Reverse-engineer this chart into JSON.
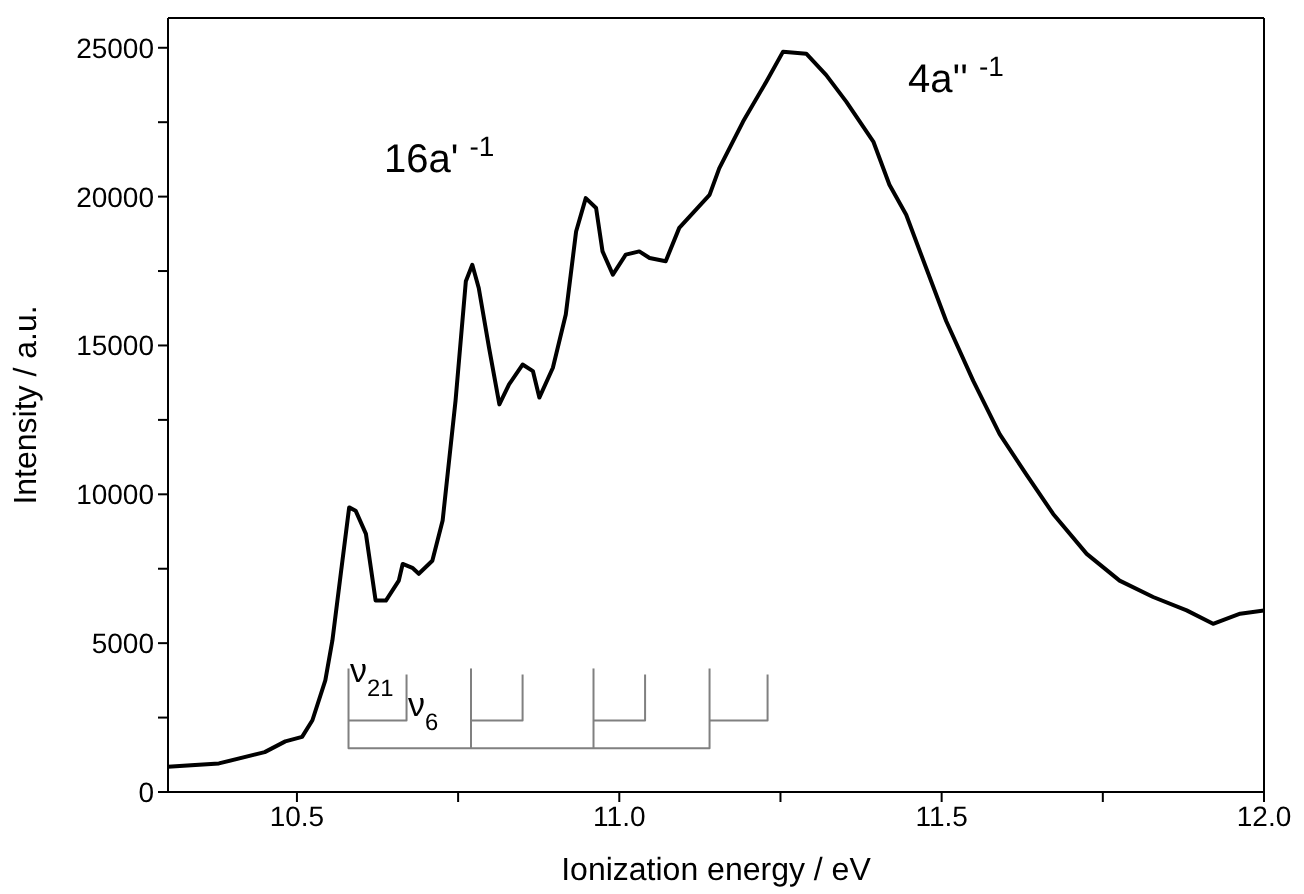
{
  "chart_data": {
    "type": "line",
    "xlabel": "Ionization energy / eV",
    "ylabel": "Intensity / a.u.",
    "xlim": [
      10.3,
      12.0
    ],
    "ylim": [
      0,
      26000
    ],
    "xticks": [
      10.5,
      {
        "value": 10.75,
        "label": null
      },
      {
        "value": 11,
        "label": "11.0"
      },
      {
        "value": 11.25,
        "label": null
      },
      11.5,
      {
        "value": 11.75,
        "label": null
      },
      {
        "value": 12,
        "label": "12.0"
      }
    ],
    "yticks": [
      0,
      {
        "value": 2500,
        "label": null
      },
      5000,
      {
        "value": 7500,
        "label": null
      },
      10000,
      {
        "value": 12500,
        "label": null
      },
      15000,
      {
        "value": 17500,
        "label": null
      },
      20000,
      {
        "value": 22500,
        "label": null
      },
      25000
    ],
    "marker": "none",
    "line_style": "solid",
    "series": [
      {
        "color": "#000000",
        "x": [
          10.3,
          10.379,
          10.45,
          10.482,
          10.508,
          10.524,
          10.544,
          10.555,
          10.568,
          10.581,
          10.591,
          10.607,
          10.622,
          10.638,
          10.658,
          10.664,
          10.679,
          10.689,
          10.71,
          10.726,
          10.746,
          10.762,
          10.772,
          10.782,
          10.798,
          10.814,
          10.829,
          10.85,
          10.866,
          10.876,
          10.897,
          10.917,
          10.933,
          10.948,
          10.964,
          10.974,
          10.99,
          11.01,
          11.031,
          11.047,
          11.072,
          11.093,
          11.14,
          11.155,
          11.192,
          11.228,
          11.254,
          11.29,
          11.321,
          11.352,
          11.394,
          11.419,
          11.445,
          11.476,
          11.507,
          11.549,
          11.59,
          11.631,
          11.673,
          11.725,
          11.776,
          11.828,
          11.88,
          11.921,
          11.963,
          12.0
        ],
        "values": [
          850,
          960,
          1340,
          1700,
          1850,
          2410,
          3750,
          5090,
          7330,
          9560,
          9450,
          8670,
          6430,
          6430,
          7100,
          7660,
          7530,
          7330,
          7770,
          9120,
          13140,
          17160,
          17710,
          16930,
          14920,
          13020,
          13690,
          14360,
          14140,
          13250,
          14250,
          16040,
          18830,
          19950,
          19620,
          18160,
          17380,
          18050,
          18160,
          17940,
          17830,
          18950,
          20060,
          20950,
          22520,
          23860,
          24870,
          24800,
          24080,
          23190,
          21850,
          20400,
          19390,
          17600,
          15820,
          13810,
          12020,
          10680,
          9340,
          8000,
          7100,
          6550,
          6100,
          5650,
          5990,
          6100
        ]
      },
      {
        "color": "#808080",
        "x": [
          10.58,
          10.58,
          11.14,
          11.14
        ],
        "values": [
          4150,
          1470,
          1470,
          4150
        ]
      },
      {
        "color": "#808080",
        "x": [
          10.77,
          10.77
        ],
        "values": [
          1470,
          4150
        ]
      },
      {
        "color": "#808080",
        "x": [
          10.96,
          10.96
        ],
        "values": [
          1470,
          4150
        ]
      },
      {
        "color": "#808080",
        "x": [
          10.58,
          10.67,
          10.67
        ],
        "values": [
          2400,
          2400,
          3950
        ]
      },
      {
        "color": "#808080",
        "x": [
          10.77,
          10.85,
          10.85
        ],
        "values": [
          2400,
          2400,
          3950
        ]
      },
      {
        "color": "#808080",
        "x": [
          10.96,
          11.04,
          11.04
        ],
        "values": [
          2400,
          2400,
          3950
        ]
      },
      {
        "color": "#808080",
        "x": [
          11.14,
          11.23,
          11.23
        ],
        "values": [
          2400,
          2400,
          3950
        ]
      }
    ],
    "annotations": [
      "16a' $^{-1}$",
      "4a'' $^{-1}$",
      "ν$_{21}$",
      "ν$_{6}$"
    ]
  }
}
